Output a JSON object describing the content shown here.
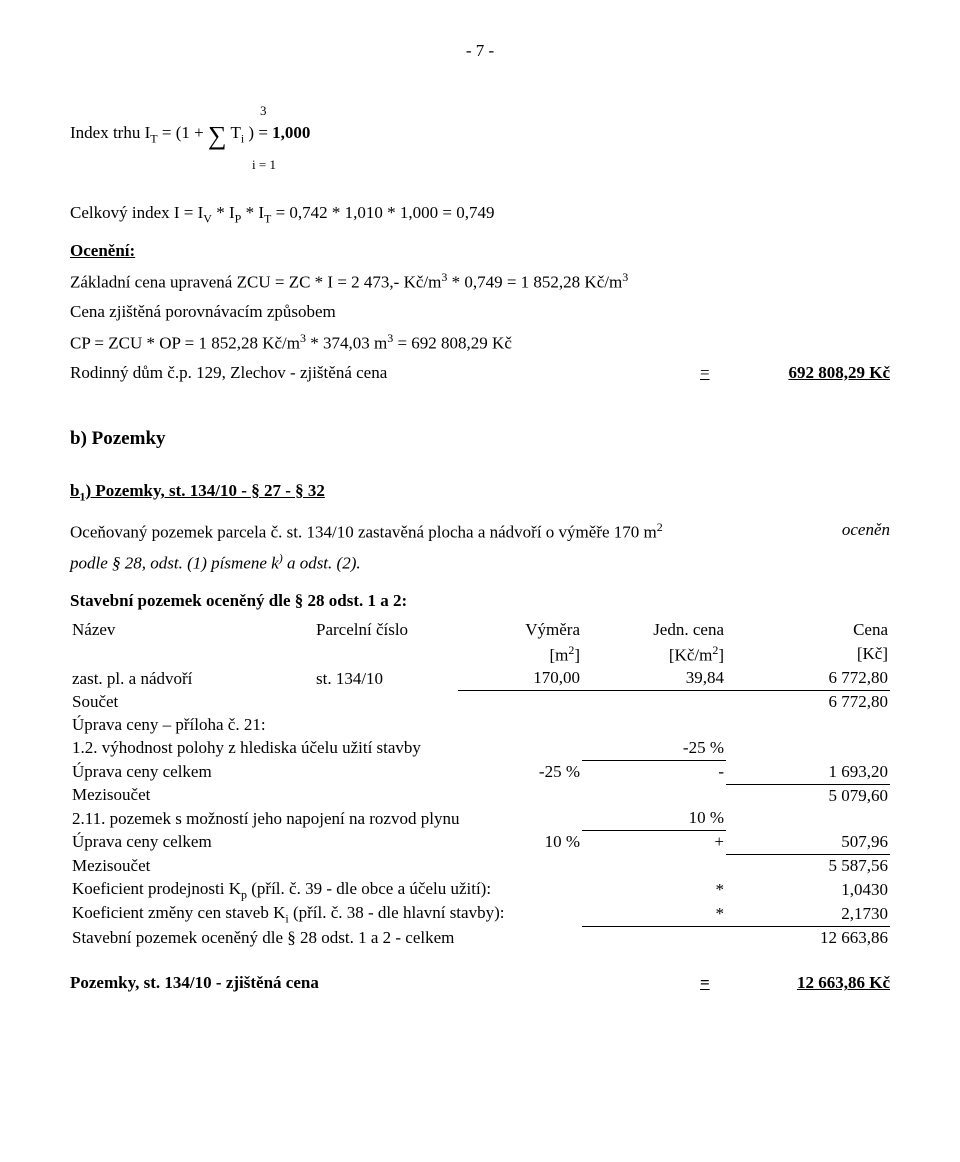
{
  "pageNumber": "- 7 -",
  "sumTop": "3",
  "sumLine": "Index trhu I",
  "sumSubT": "T",
  "sumEq": " = (1 + ",
  "sumTi": " T",
  "sumTiSub": "i",
  "sumClose": " ) = ",
  "sumResult": "1,000",
  "sumBot": "i = 1",
  "celkLabel": "Celkový index I = I",
  "celkV": "V",
  "celkStar1": " * I",
  "celkP": "P",
  "celkStar2": " * I",
  "celkT": "T",
  "celkRest": " = 0,742 * 1,010 * 1,000 = 0,749",
  "oceneni": "Ocenění:",
  "zakl1": "Základní cena upravená ZCU = ZC * I = 2 473,- Kč/m",
  "zakl1sup": "3",
  "zakl1b": " * 0,749  = 1 852,28 Kč/m",
  "zakl1bsup": "3",
  "cenaZj": "Cena zjištěná porovnávacím způsobem",
  "cp": "CP = ZCU * OP = 1 852,28 Kč/m",
  "cpSup": "3",
  "cpMid": " * 374,03 m",
  "cpSup2": "3",
  "cpEnd": " = 692 808,29 Kč",
  "rodLabel": "Rodinný dům č.p. 129, Zlechov - zjištěná cena",
  "rodEq": "=",
  "rodVal": "692 808,29 Kč",
  "bPozemky": "b) Pozemky",
  "b1label": "b",
  "b1sub": "1",
  "b1rest": ") Pozemky,  st. 134/10  - § 27 - § 32",
  "ocenovany1": "Oceňovaný pozemek  parcela č. st. 134/10 zastavěná plocha a nádvoří o výměře 170 m",
  "ocenovanySup": "2",
  "ocenovanyTail": "oceněn",
  "ocenovany2a": "podle § 28, odst. (1) písmene k",
  "ocenovany2sup": ")",
  "ocenovany2b": " a odst. (2).",
  "stavHead": "Stavební pozemek oceněný dle § 28 odst. 1 a 2:",
  "hdr": {
    "name": "Název",
    "parc": "Parcelní číslo",
    "vym": "Výměra",
    "jedn": "Jedn. cena",
    "cena": "Cena"
  },
  "hdr2": {
    "vym": "[m",
    "vymSup": "2",
    "vymEnd": "]",
    "jedn": "[Kč/m",
    "jednSup": "2",
    "jednEnd": "]",
    "cena": "[Kč]"
  },
  "row1": {
    "name": "zast. pl. a nádvoří",
    "parc": "st. 134/10",
    "vym": "170,00",
    "jedn": "39,84",
    "cena": "6 772,80"
  },
  "soucet": {
    "label": "Součet",
    "val": "6 772,80"
  },
  "upr21": "Úprava ceny – příloha č. 21:",
  "r12": {
    "label": "1.2. výhodnost polohy z hlediska účelu užití stavby",
    "pct": "-25 %"
  },
  "uprCelk1": {
    "label": "Úprava ceny celkem",
    "pct": "-25 %",
    "sign": "-",
    "val": "1 693,20"
  },
  "mezi1": {
    "label": "Mezisoučet",
    "val": "5 079,60"
  },
  "r211": {
    "label": "2.11. pozemek s možností jeho napojení na rozvod plynu",
    "pct": "10 %"
  },
  "uprCelk2": {
    "label": "Úprava ceny celkem",
    "pct": "10 %",
    "sign": "+",
    "val": "507,96"
  },
  "mezi2": {
    "label": "Mezisoučet",
    "val": "5 587,56"
  },
  "koefKp": {
    "label": "Koeficient prodejnosti K",
    "sub": "p",
    "rest": " (příl. č. 39 - dle obce a účelu užití):",
    "star": "*",
    "val": "1,0430"
  },
  "koefKi": {
    "label": "Koeficient změny cen staveb K",
    "sub": "i",
    "rest": " (příl. č. 38 - dle hlavní stavby):",
    "star": "*",
    "val": "2,1730"
  },
  "stavCelk": {
    "label": "Stavební pozemek oceněný dle § 28 odst. 1 a 2 - celkem",
    "val": "12 663,86"
  },
  "pozZj": {
    "label": "Pozemky,  st. 134/10 - zjištěná cena",
    "eq": "=",
    "val": "12 663,86 Kč"
  }
}
